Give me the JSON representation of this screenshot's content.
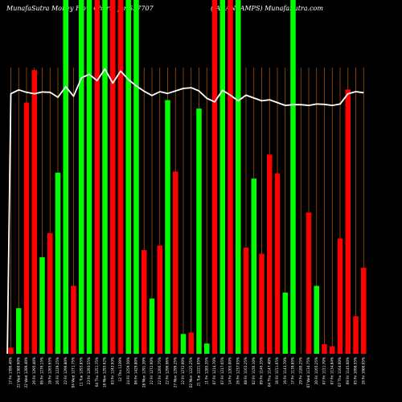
{
  "title_left": "MunafaSutra  Money Flow  Charts for 537707",
  "title_right": "(JAGANLAMPS)  MunafaSutra.com",
  "colors": {
    "background": "#000000",
    "up": "#00ff00",
    "down": "#ff0000",
    "gridline": "#a0520a",
    "line": "#ffffff",
    "text": "#ffffff"
  },
  "chart_data": {
    "type": "bar",
    "title": "MunafaSutra  Money Flow  Charts for 537707 (JAGANLAMPS)  MunafaSutra.com",
    "xlabel": "",
    "ylabel": "",
    "ylim": [
      0,
      100
    ],
    "grid": "vertical lines, on",
    "categories": [
      "17 Fri 1396.40%",
      "22 Wed 1380.60%",
      "22 Wed 1289.40%",
      "26 Fri 1295.40%",
      "06 Fri 1276.15%",
      "18 Fri 1265.65%",
      "26 Fri 1229.25%",
      "22 Fri 1290.80%",
      "04 Wed 1271.75%",
      "11 Tue 1293.85%",
      "23 Fri 1293.55%",
      "04 Thu 1251.75%",
      "18 Mon 1293.62%",
      "03 Fri 1243.93%",
      "12 Thu 1239%",
      "24 Fri 1259.50%",
      "06 Fri 1429.80%",
      "28 Mon 1291.39%",
      "22 Fri 1272.60%",
      "22 Fri 1266.75%",
      "22 Fri 1296.96%",
      "27 Mon 1299.25%",
      "22 Fri 1272.60%",
      "02 Mon 1225.25%",
      "21 Tue 1221.05%",
      "11 Fri 1285.35%",
      "07 Fri 1214.70%",
      "07 Fri 1217.05%",
      "14 Fri 1205.00%",
      "26 Fri 1237.05%",
      "08 Fri 1163.25%",
      "02 Fri 1156.10%",
      "09 Fri 1146.35%",
      "04 Thu 1147.40%",
      "16 Fri 1151.65%",
      "16 Fri 1143.70%",
      "17 Fri 1139.85%",
      "29 Fri 1180.25%",
      "07 Wed 1134.75%",
      "20 Fri 1165.25%",
      "07 Fri 1151.70%",
      "07 Fri 1134.84%",
      "07 Thu 1164.60%",
      "09 Fri 1145.60%",
      "05 Fri 1098.55%",
      "26 Fri 1086.05%"
    ],
    "series": [
      {
        "values": [
          1.7,
          12.9,
          71.0,
          80.2,
          27.3,
          34.1,
          51.2,
          100,
          19.2,
          100,
          100,
          100,
          100,
          100,
          100,
          100,
          100,
          29.3,
          15.6,
          30.6,
          71.7,
          51.5,
          5.6,
          6.0,
          69.3,
          2.9,
          100,
          100,
          100,
          100,
          30.0,
          49.5,
          28.3,
          56.3,
          51.0,
          17.3,
          100,
          0,
          39.9,
          19.2,
          2.7,
          2.1,
          32.6,
          74.7,
          10.6,
          24.3
        ],
        "colors": [
          "down",
          "up",
          "down",
          "down",
          "up",
          "down",
          "up",
          "up",
          "down",
          "up",
          "up",
          "down",
          "up",
          "down",
          "down",
          "up",
          "up",
          "down",
          "up",
          "down",
          "up",
          "down",
          "up",
          "down",
          "up",
          "up",
          "down",
          "up",
          "down",
          "up",
          "down",
          "up",
          "down",
          "down",
          "down",
          "up",
          "up",
          "down",
          "down",
          "up",
          "down",
          "down",
          "down",
          "down",
          "down",
          "down"
        ]
      },
      {
        "type": "line",
        "values": [
          73.5,
          74.6,
          73.9,
          73.5,
          74.0,
          73.9,
          72.5,
          75.5,
          72.8,
          78.0,
          79.0,
          77.2,
          80.5,
          76.5,
          79.9,
          77.5,
          75.7,
          74.2,
          73.0,
          74.1,
          73.6,
          74.3,
          75.0,
          75.2,
          74.3,
          72.2,
          71.2,
          74.5,
          73.1,
          71.5,
          73.1,
          72.3,
          71.5,
          71.8,
          71.0,
          70.2,
          70.4,
          70.4,
          70.2,
          70.6,
          70.5,
          70.2,
          70.6,
          73.5,
          74.1,
          73.8
        ]
      }
    ],
    "baseline_line": {
      "x_start": 0.1,
      "values": [
        0,
        73.5
      ]
    }
  }
}
